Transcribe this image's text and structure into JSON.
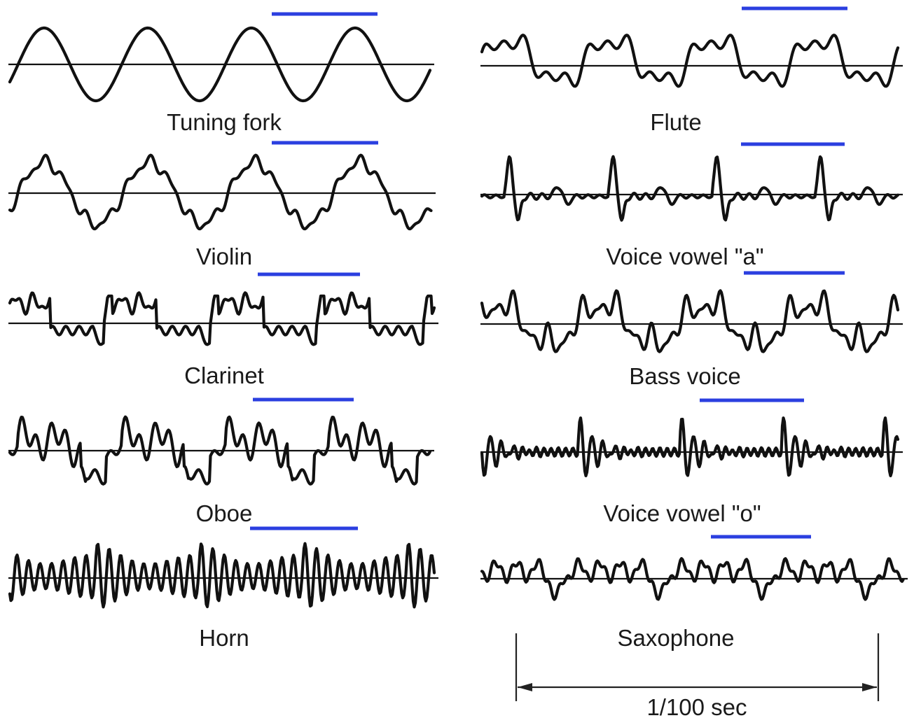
{
  "colors": {
    "waveform": "#111111",
    "period_marker": "#2b3fe0",
    "text": "#1a1a1a"
  },
  "waveforms": [
    {
      "label": "Tuning fork"
    },
    {
      "label": "Flute"
    },
    {
      "label": "Violin"
    },
    {
      "label": "Voice vowel \"a\""
    },
    {
      "label": "Clarinet"
    },
    {
      "label": "Bass voice"
    },
    {
      "label": "Oboe"
    },
    {
      "label": "Voice vowel \"o\""
    },
    {
      "label": "Horn"
    },
    {
      "label": "Saxophone"
    }
  ],
  "time_scale": {
    "label": "1/100 sec"
  }
}
